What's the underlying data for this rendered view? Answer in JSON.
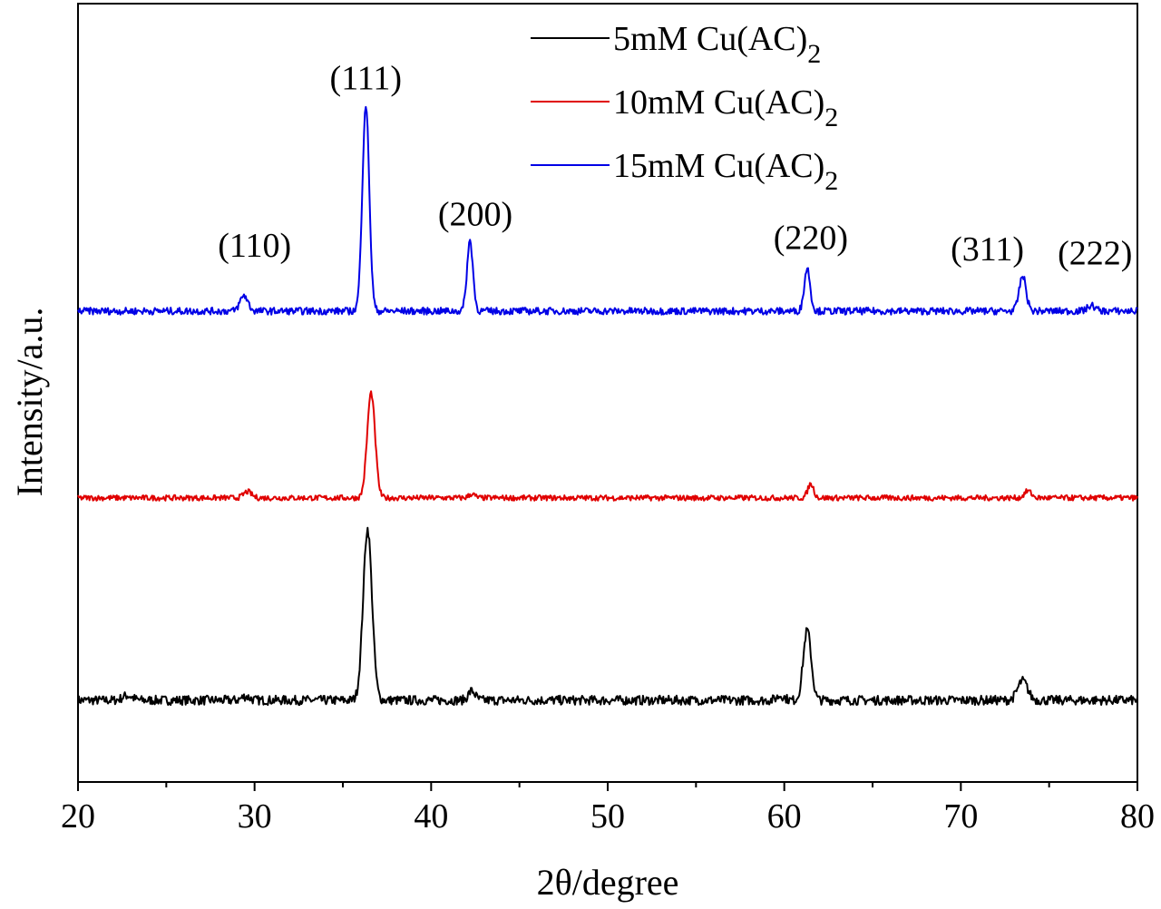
{
  "chart_data": {
    "type": "line",
    "xlabel": "2θ/degree",
    "ylabel": "Intensity/a.u.",
    "xlim": [
      20,
      80
    ],
    "ylim": [
      0,
      100
    ],
    "x_ticks": [
      20,
      30,
      40,
      50,
      60,
      70,
      80
    ],
    "x_tick_labels": [
      "20",
      "30",
      "40",
      "50",
      "60",
      "70",
      "80"
    ],
    "x_minor_tick_step": 5,
    "y_ticks_shown": false,
    "grid": false,
    "legend_position": "top-center",
    "series": [
      {
        "name": "5mM Cu(AC)",
        "name_subscript": "2",
        "color": "#000000",
        "baseline": 10.5,
        "noise": 0.6,
        "peaks": [
          {
            "x": 22.8,
            "height": 0.6,
            "width": 0.5
          },
          {
            "x": 29.5,
            "height": 0.5,
            "width": 0.4
          },
          {
            "x": 36.4,
            "height": 22.0,
            "width": 0.45
          },
          {
            "x": 42.3,
            "height": 1.2,
            "width": 0.35
          },
          {
            "x": 59.8,
            "height": 0.6,
            "width": 0.4
          },
          {
            "x": 61.3,
            "height": 9.0,
            "width": 0.4
          },
          {
            "x": 73.5,
            "height": 2.5,
            "width": 0.5
          }
        ]
      },
      {
        "name": "10mM Cu(AC)",
        "name_subscript": "2",
        "color": "#e00000",
        "baseline": 36.5,
        "noise": 0.35,
        "peaks": [
          {
            "x": 29.6,
            "height": 0.8,
            "width": 0.4
          },
          {
            "x": 36.6,
            "height": 13.5,
            "width": 0.4
          },
          {
            "x": 42.3,
            "height": 0.5,
            "width": 0.3
          },
          {
            "x": 61.5,
            "height": 1.8,
            "width": 0.3
          },
          {
            "x": 73.8,
            "height": 0.9,
            "width": 0.35
          }
        ]
      },
      {
        "name": "15mM Cu(AC)",
        "name_subscript": "2",
        "color": "#0000e6",
        "baseline": 60.5,
        "noise": 0.45,
        "peaks": [
          {
            "x": 29.4,
            "height": 2.0,
            "width": 0.4
          },
          {
            "x": 36.3,
            "height": 26.5,
            "width": 0.35
          },
          {
            "x": 42.2,
            "height": 9.0,
            "width": 0.3
          },
          {
            "x": 61.3,
            "height": 5.5,
            "width": 0.3
          },
          {
            "x": 73.5,
            "height": 4.5,
            "width": 0.35
          },
          {
            "x": 77.4,
            "height": 0.7,
            "width": 0.4
          }
        ]
      }
    ],
    "annotations": [
      {
        "text": "(110)",
        "x": 30.0,
        "y": 67.5
      },
      {
        "text": "(111)",
        "x": 36.3,
        "y": 89.0
      },
      {
        "text": "(200)",
        "x": 42.5,
        "y": 71.5
      },
      {
        "text": "(220)",
        "x": 61.5,
        "y": 68.5
      },
      {
        "text": "(311)",
        "x": 71.5,
        "y": 67.0
      },
      {
        "text": "(222)",
        "x": 77.6,
        "y": 66.5
      }
    ]
  }
}
